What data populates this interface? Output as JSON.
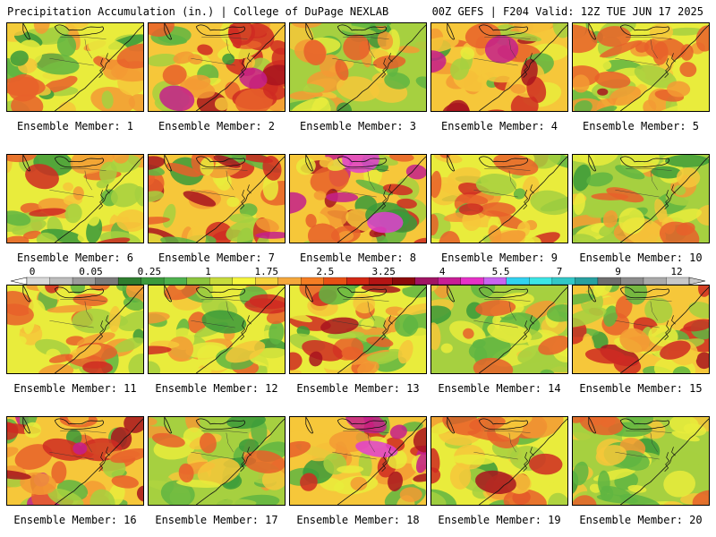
{
  "header": {
    "left_title": "Precipitation Accumulation (in.) | College of DuPage NEXLAB",
    "right_title": "00Z GEFS | F204 Valid: 12Z TUE JUN 17 2025"
  },
  "member_label_prefix": "Ensemble Member:",
  "members": [
    "1",
    "2",
    "3",
    "4",
    "5",
    "6",
    "7",
    "8",
    "9",
    "10",
    "11",
    "12",
    "13",
    "14",
    "15",
    "16",
    "17",
    "18",
    "19",
    "20"
  ],
  "colorbar": {
    "tick_labels": [
      "0",
      "0.05",
      "0.25",
      "1",
      "1.75",
      "2.5",
      "3.25",
      "4",
      "5.5",
      "7",
      "9",
      "12"
    ],
    "colors": [
      "#d9d9d9",
      "#bdbdbd",
      "#9c9c9c",
      "#7a7a7a",
      "#2f7d2f",
      "#3c9a3c",
      "#4fb24f",
      "#8cc63f",
      "#c8dc3c",
      "#f5f53c",
      "#f5d23c",
      "#f5a83c",
      "#f57d23",
      "#e85014",
      "#d22814",
      "#b41414",
      "#8c0a0a",
      "#a01464",
      "#c81e96",
      "#e632c8",
      "#c864f0",
      "#32d2f0",
      "#3ce6e6",
      "#32c8c8",
      "#28a0a0",
      "#6e6e6e",
      "#8c8c8c",
      "#aaaaaa",
      "#c8c8c8"
    ]
  },
  "map_palette": [
    "#3a9a3a",
    "#5fb542",
    "#a6d040",
    "#e9ec3c",
    "#f6c73a",
    "#f39a34",
    "#e8602a",
    "#cf2a22",
    "#a8141e",
    "#c41e8c",
    "#e040d0",
    "#4ad8f0"
  ],
  "map_intensity": [
    2,
    4,
    1,
    4,
    3,
    2,
    5,
    5,
    3,
    1,
    2,
    2,
    3,
    1,
    4,
    5,
    1,
    5,
    3,
    1
  ]
}
